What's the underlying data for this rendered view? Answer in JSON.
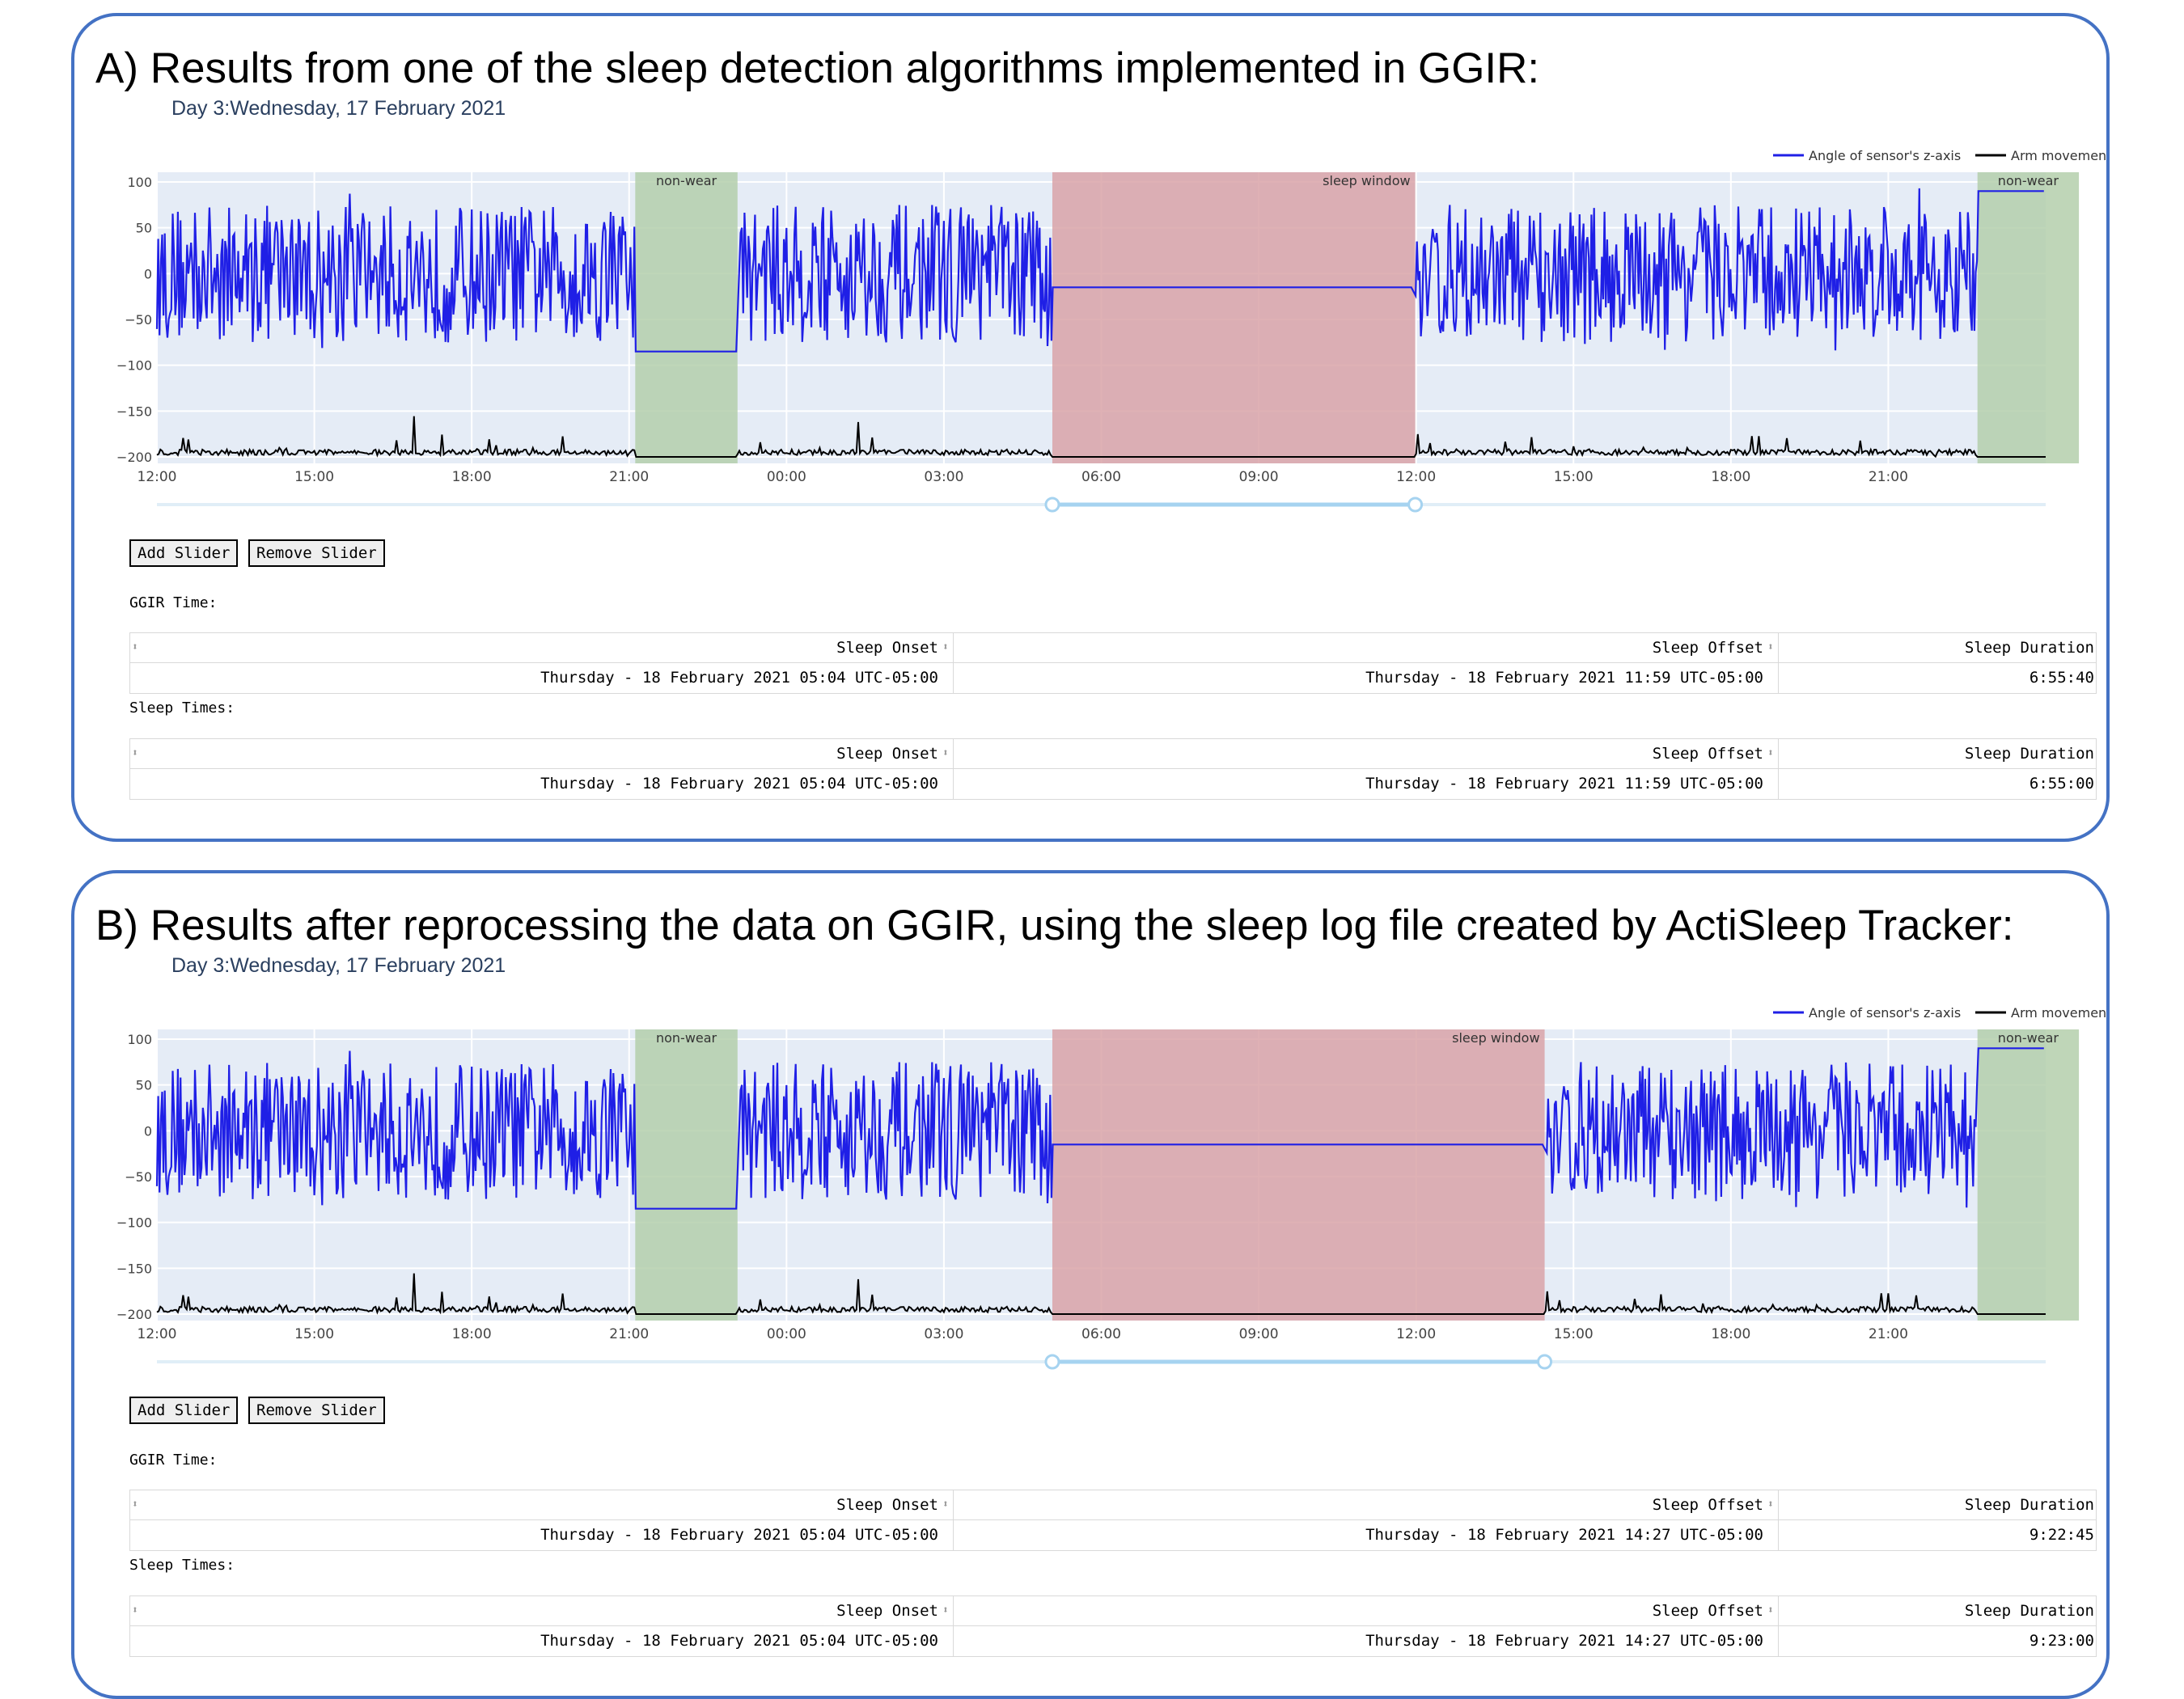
{
  "panels": [
    {
      "heading": "A) Results from one of the sleep detection algorithms implemented in GGIR:",
      "day_title": "Day 3:Wednesday, 17 February 2021",
      "legend": {
        "angle": "Angle of sensor's z-axis",
        "arm": "Arm movement"
      },
      "y_ticks": [
        "100",
        "50",
        "0",
        "−50",
        "−100",
        "−150",
        "−200"
      ],
      "x_ticks": [
        "12:00",
        "15:00",
        "18:00",
        "21:00",
        "00:00",
        "03:00",
        "06:00",
        "09:00",
        "12:00",
        "15:00",
        "18:00",
        "21:00"
      ],
      "annotations": {
        "nonwear_1": "non-wear",
        "sleep": "sleep window",
        "nonwear_2": "non-wear"
      },
      "sleep_window": {
        "start": "05:04",
        "end": "11:59"
      },
      "buttons": {
        "add": "Add Slider",
        "remove": "Remove Slider"
      },
      "ggir_label": "GGIR Time:",
      "sleep_label": "Sleep Times:",
      "columns": [
        "Sleep Onset",
        "Sleep Offset",
        "Sleep Duration"
      ],
      "ggir_row": [
        "Thursday - 18 February 2021 05:04 UTC-05:00",
        "Thursday - 18 February 2021 11:59 UTC-05:00",
        "6:55:40"
      ],
      "sleep_row": [
        "Thursday - 18 February 2021 05:04 UTC-05:00",
        "Thursday - 18 February 2021 11:59 UTC-05:00",
        "6:55:00"
      ]
    },
    {
      "heading": "B) Results after reprocessing the data on GGIR, using the sleep log file created by ActiSleep Tracker:",
      "day_title": "Day 3:Wednesday, 17 February 2021",
      "legend": {
        "angle": "Angle of sensor's z-axis",
        "arm": "Arm movement"
      },
      "y_ticks": [
        "100",
        "50",
        "0",
        "−50",
        "−100",
        "−150",
        "−200"
      ],
      "x_ticks": [
        "12:00",
        "15:00",
        "18:00",
        "21:00",
        "00:00",
        "03:00",
        "06:00",
        "09:00",
        "12:00",
        "15:00",
        "18:00",
        "21:00"
      ],
      "annotations": {
        "nonwear_1": "non-wear",
        "sleep": "sleep window",
        "nonwear_2": "non-wear"
      },
      "sleep_window": {
        "start": "05:04",
        "end": "14:27"
      },
      "buttons": {
        "add": "Add Slider",
        "remove": "Remove Slider"
      },
      "ggir_label": "GGIR Time:",
      "sleep_label": "Sleep Times:",
      "columns": [
        "Sleep Onset",
        "Sleep Offset",
        "Sleep Duration"
      ],
      "ggir_row": [
        "Thursday - 18 February 2021 05:04 UTC-05:00",
        "Thursday - 18 February 2021 14:27 UTC-05:00",
        "9:22:45"
      ],
      "sleep_row": [
        "Thursday - 18 February 2021 05:04 UTC-05:00",
        "Thursday - 18 February 2021 14:27 UTC-05:00",
        "9:23:00"
      ]
    }
  ],
  "colors": {
    "angle_line": "#1f1fe6",
    "arm_line": "#000000",
    "plot_bg": "#e5ecf6",
    "sleep_shade": "#d9a3a8",
    "nonwear_shade": "#b4cfab",
    "slider": "#a6d3f0",
    "panel_border": "#4472c4"
  }
}
